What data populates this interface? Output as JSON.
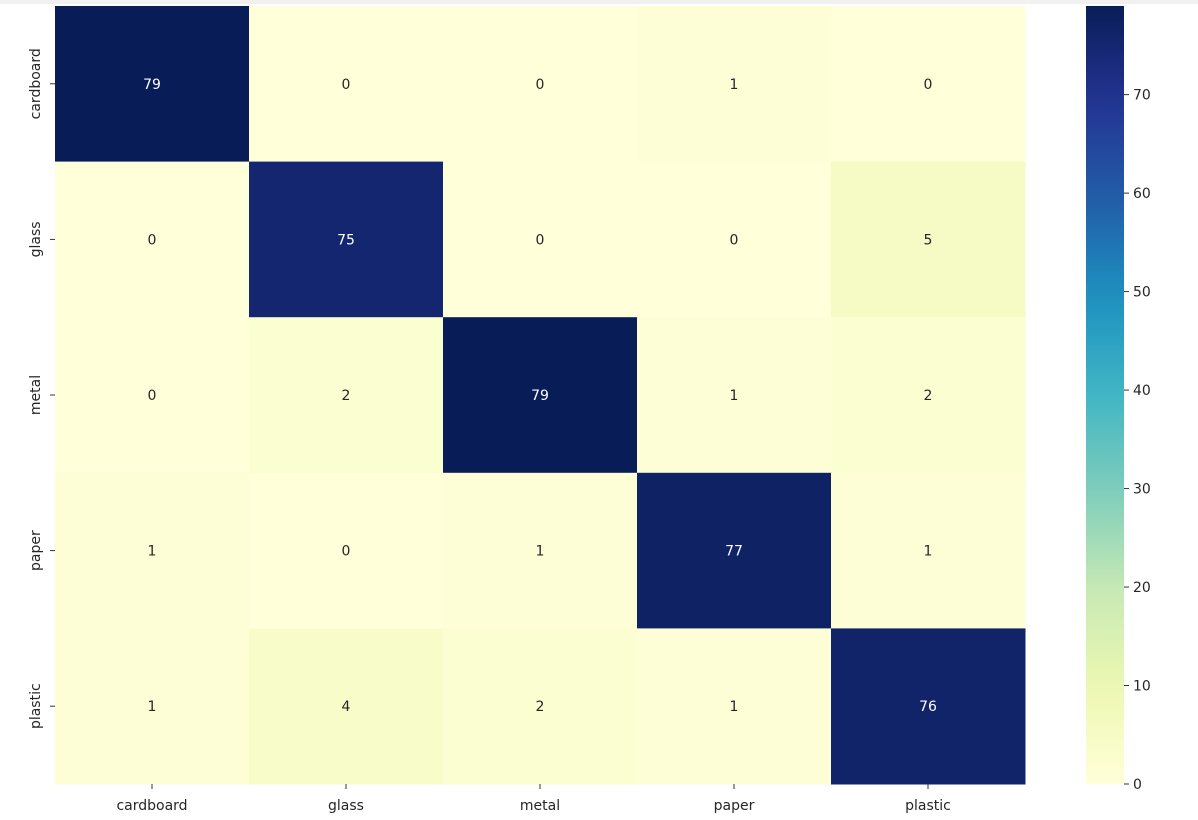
{
  "chart_data": {
    "type": "heatmap",
    "x_categories": [
      "cardboard",
      "glass",
      "metal",
      "paper",
      "plastic"
    ],
    "y_categories": [
      "cardboard",
      "glass",
      "metal",
      "paper",
      "plastic"
    ],
    "values": [
      [
        79,
        0,
        0,
        1,
        0
      ],
      [
        0,
        75,
        0,
        0,
        5
      ],
      [
        0,
        2,
        79,
        1,
        2
      ],
      [
        1,
        0,
        1,
        77,
        1
      ],
      [
        1,
        4,
        2,
        1,
        76
      ]
    ],
    "annotations": true,
    "colormap": "YlGnBu",
    "colorbar": {
      "min": 0,
      "max": 79,
      "ticks": [
        0,
        10,
        20,
        30,
        40,
        50,
        60,
        70
      ]
    },
    "title": "",
    "xlabel": "",
    "ylabel": ""
  }
}
